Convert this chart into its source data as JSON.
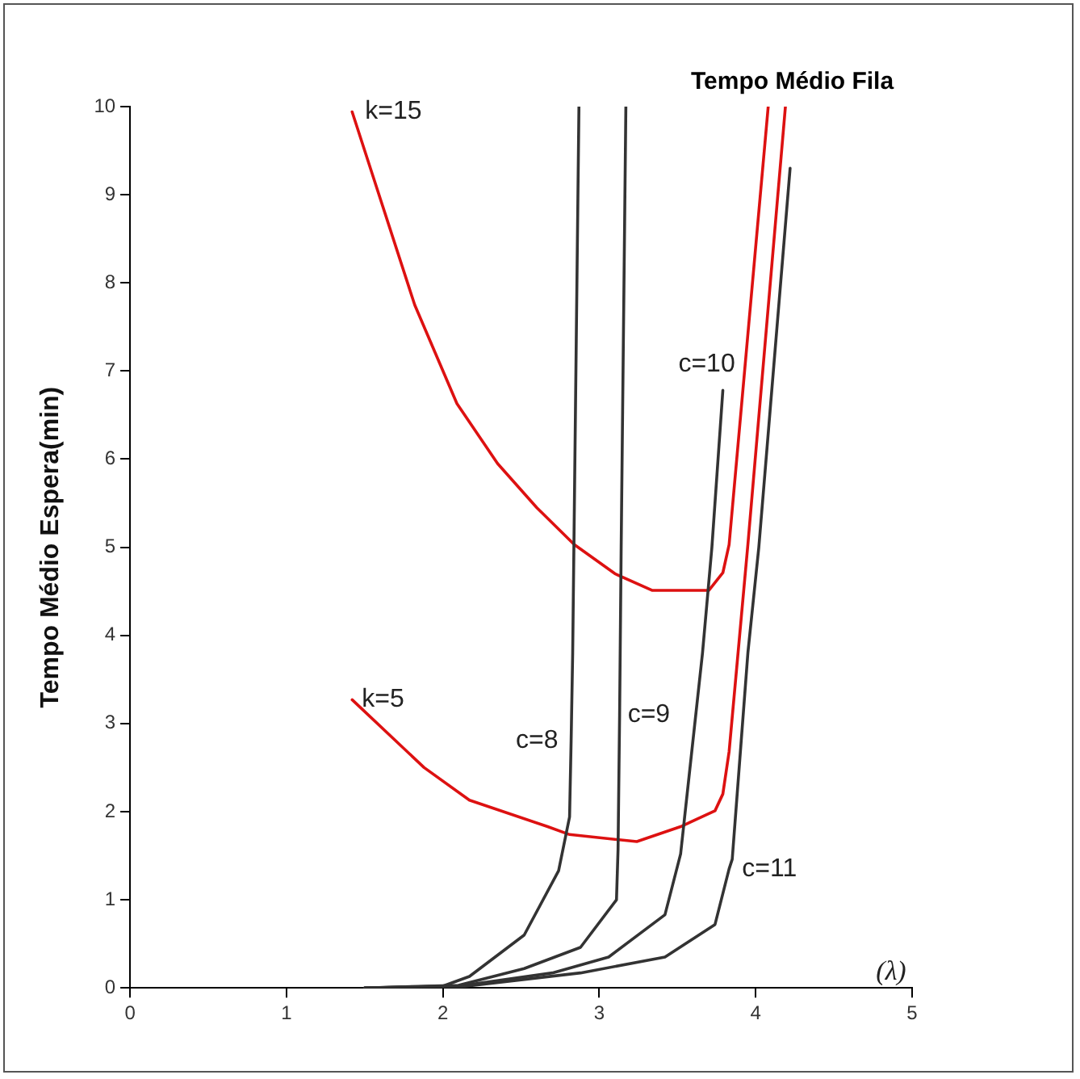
{
  "chart_data": {
    "type": "line",
    "title": "Tempo Médio Fila",
    "xlabel": "(λ)",
    "ylabel": "Tempo Médio Espera(min)",
    "xlim": [
      0,
      5
    ],
    "xticks": [
      0,
      1,
      2,
      3,
      4,
      5
    ],
    "ylim": [
      0,
      10
    ],
    "yticks": [
      0,
      1,
      2,
      3,
      4,
      5,
      6,
      7,
      8,
      9,
      10
    ],
    "grid": false,
    "legend": false,
    "marker": "none",
    "line_style": "solid",
    "series": [
      {
        "color": "#333333",
        "x": [
          1.5,
          2.0,
          2.17,
          2.52,
          2.74,
          2.81,
          2.82,
          2.83,
          2.87
        ],
        "values": [
          0,
          0.02,
          0.13,
          0.6,
          1.33,
          1.94,
          2.8,
          3.8,
          10
        ]
      },
      {
        "color": "#333333",
        "x": [
          1.5,
          2.1,
          2.52,
          2.88,
          3.11,
          3.12,
          3.13,
          3.14,
          3.17
        ],
        "values": [
          0,
          0.03,
          0.22,
          0.46,
          1.0,
          1.57,
          3.1,
          5.0,
          10
        ]
      },
      {
        "color": "#333333",
        "x": [
          1.5,
          2.1,
          2.7,
          3.06,
          3.42,
          3.52,
          3.66,
          3.72,
          3.79
        ],
        "values": [
          0,
          0.02,
          0.17,
          0.35,
          0.83,
          1.52,
          3.8,
          5.0,
          6.78
        ]
      },
      {
        "color": "#333333",
        "x": [
          1.5,
          2.1,
          2.88,
          3.42,
          3.74,
          3.83,
          3.85,
          3.95,
          4.02,
          4.22
        ],
        "values": [
          0,
          0.01,
          0.17,
          0.35,
          0.72,
          1.35,
          1.46,
          3.8,
          5.0,
          9.3
        ]
      },
      {
        "color": "#dd1111",
        "x": [
          1.42,
          1.82,
          2.09,
          2.35,
          2.6,
          2.84,
          3.1,
          3.34,
          3.7,
          3.79,
          3.83,
          4.08
        ],
        "values": [
          9.94,
          7.75,
          6.63,
          5.95,
          5.45,
          5.03,
          4.7,
          4.51,
          4.51,
          4.71,
          5.03,
          10
        ]
      },
      {
        "color": "#dd1111",
        "x": [
          1.42,
          1.88,
          2.17,
          2.67,
          2.81,
          3.24,
          3.52,
          3.74,
          3.79,
          3.83,
          3.95,
          4.19
        ],
        "values": [
          3.27,
          2.5,
          2.13,
          1.83,
          1.74,
          1.66,
          1.83,
          2.01,
          2.2,
          2.68,
          5.03,
          10
        ]
      }
    ],
    "annotations": [
      {
        "text": "k=15",
        "x": 1.42,
        "y": 9.94
      },
      {
        "text": "k=5",
        "x": 1.42,
        "y": 3.27
      },
      {
        "text": "c=8",
        "x": 2.82,
        "y": 2.8
      },
      {
        "text": "c=9",
        "x": 3.13,
        "y": 3.1
      },
      {
        "text": "c=10",
        "x": 3.79,
        "y": 6.78
      },
      {
        "text": "c=11",
        "x": 3.83,
        "y": 1.35
      }
    ]
  }
}
